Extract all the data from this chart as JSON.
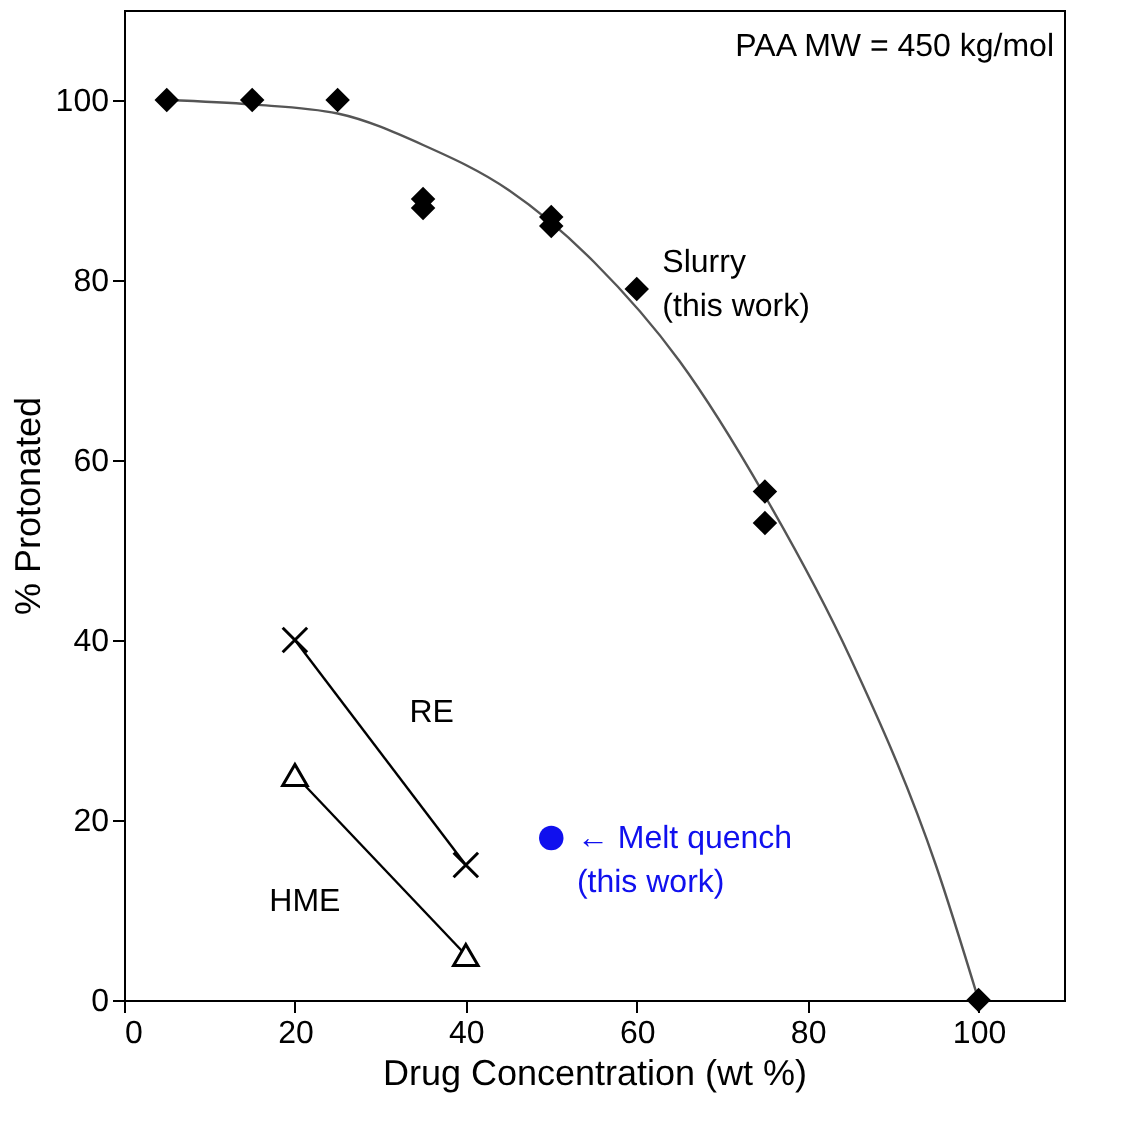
{
  "chart_data": {
    "type": "scatter",
    "xlabel": "Drug Concentration (wt %)",
    "ylabel": "% Protonated",
    "xlim": [
      0,
      110
    ],
    "ylim": [
      0,
      110
    ],
    "xticks": [
      0,
      20,
      40,
      60,
      80,
      100
    ],
    "yticks": [
      0,
      20,
      40,
      60,
      80,
      100
    ],
    "grid": false,
    "annotations": [
      "PAA MW = 450 kg/mol"
    ],
    "series": [
      {
        "type": "line",
        "color": "#555555",
        "marker": "none",
        "x": [
          5,
          15,
          25,
          35,
          45,
          55,
          65,
          75,
          85,
          95,
          100
        ],
        "values": [
          100,
          99.5,
          98.5,
          95,
          90,
          82,
          71,
          56,
          38,
          15,
          0
        ]
      },
      {
        "name": "Slurry\n(this work)",
        "type": "scatter",
        "color": "#000000",
        "marker": "diamond",
        "x": [
          5,
          15,
          25,
          35,
          35,
          50,
          50,
          60,
          75,
          75,
          100
        ],
        "values": [
          100,
          100,
          100,
          89,
          88,
          87,
          86,
          79,
          56.5,
          53,
          0
        ]
      },
      {
        "name": "RE",
        "type": "line",
        "color": "#000000",
        "marker": "cross",
        "x": [
          20,
          40
        ],
        "values": [
          40,
          15
        ]
      },
      {
        "name": "HME",
        "type": "line",
        "color": "#000000",
        "marker": "triangle",
        "x": [
          20,
          40
        ],
        "values": [
          25,
          5
        ]
      },
      {
        "name": "← Melt quench\n(this work)",
        "type": "scatter",
        "color": "#1010ee",
        "marker": "circle",
        "x": [
          50
        ],
        "values": [
          18
        ]
      }
    ]
  }
}
